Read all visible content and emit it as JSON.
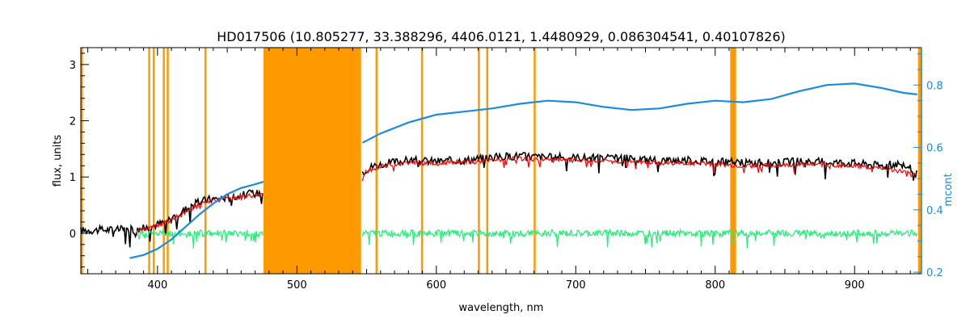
{
  "chart_data": {
    "type": "line",
    "title": "HD017506    (10.805277, 33.388296, 4406.0121, 1.4480929, 0.086304541, 0.40107826)",
    "xlabel": "wavelength, nm",
    "ylabel": "flux, units",
    "y2label": "mcont",
    "xlim": [
      345,
      948
    ],
    "ylim": [
      -0.72,
      3.3
    ],
    "y2lim": [
      0.195,
      0.92
    ],
    "x_ticks": [
      400,
      500,
      600,
      700,
      800,
      900
    ],
    "y_ticks": [
      0,
      1,
      2,
      3
    ],
    "y2_ticks": [
      0.2,
      0.4,
      0.6,
      0.8
    ],
    "grid": false,
    "colors": {
      "observed": "#000000",
      "model": "#ff0000",
      "residual": "#22ee77",
      "mask": "#ff9900",
      "continuum": "#1a8be0"
    },
    "masked_regions": [
      [
        345,
        346.5
      ],
      [
        393.3,
        394.3
      ],
      [
        396.6,
        397.6
      ],
      [
        403.8,
        404.8
      ],
      [
        406.6,
        407.6
      ],
      [
        433.7,
        434.7
      ],
      [
        476,
        546
      ],
      [
        556.4,
        557.4
      ],
      [
        589,
        590
      ],
      [
        629.8,
        630.8
      ],
      [
        635.8,
        636.8
      ],
      [
        669.8,
        670.8
      ],
      [
        810.8,
        815
      ],
      [
        945.5,
        948
      ]
    ],
    "series": [
      {
        "kind": "observed",
        "segments": [
          [
            [
              345,
              0.05
            ],
            [
              360,
              0.06
            ],
            [
              375,
              0.07
            ],
            [
              385,
              0.06
            ],
            [
              395,
              0.12
            ],
            [
              405,
              0.2
            ],
            [
              415,
              0.35
            ],
            [
              425,
              0.5
            ],
            [
              435,
              0.6
            ],
            [
              445,
              0.62
            ],
            [
              455,
              0.65
            ],
            [
              465,
              0.7
            ],
            [
              476,
              0.72
            ]
          ],
          [
            [
              547,
              1.1
            ],
            [
              555,
              1.2
            ],
            [
              565,
              1.25
            ],
            [
              580,
              1.3
            ],
            [
              600,
              1.28
            ],
            [
              620,
              1.3
            ],
            [
              640,
              1.35
            ],
            [
              660,
              1.38
            ],
            [
              680,
              1.35
            ],
            [
              700,
              1.35
            ],
            [
              720,
              1.33
            ],
            [
              740,
              1.33
            ],
            [
              760,
              1.3
            ],
            [
              780,
              1.3
            ],
            [
              800,
              1.28
            ],
            [
              820,
              1.25
            ],
            [
              840,
              1.25
            ],
            [
              860,
              1.28
            ],
            [
              880,
              1.27
            ],
            [
              900,
              1.25
            ],
            [
              920,
              1.2
            ],
            [
              935,
              1.25
            ],
            [
              945,
              1.05
            ]
          ]
        ]
      },
      {
        "kind": "model",
        "segments": [
          [
            [
              385,
              0.05
            ],
            [
              395,
              0.1
            ],
            [
              405,
              0.18
            ],
            [
              415,
              0.3
            ],
            [
              425,
              0.45
            ],
            [
              435,
              0.55
            ],
            [
              445,
              0.6
            ],
            [
              455,
              0.63
            ],
            [
              465,
              0.67
            ],
            [
              476,
              0.68
            ]
          ],
          [
            [
              547,
              1.05
            ],
            [
              555,
              1.15
            ],
            [
              565,
              1.22
            ],
            [
              580,
              1.25
            ],
            [
              600,
              1.25
            ],
            [
              620,
              1.27
            ],
            [
              640,
              1.3
            ],
            [
              660,
              1.33
            ],
            [
              680,
              1.3
            ],
            [
              700,
              1.3
            ],
            [
              720,
              1.28
            ],
            [
              740,
              1.28
            ],
            [
              760,
              1.25
            ],
            [
              780,
              1.25
            ],
            [
              800,
              1.23
            ],
            [
              820,
              1.2
            ],
            [
              840,
              1.2
            ],
            [
              860,
              1.23
            ],
            [
              880,
              1.22
            ],
            [
              900,
              1.2
            ],
            [
              920,
              1.15
            ],
            [
              935,
              1.1
            ],
            [
              945,
              1.0
            ]
          ]
        ]
      },
      {
        "kind": "residual",
        "segments": [
          [
            [
              385,
              0.0
            ],
            [
              420,
              0.0
            ],
            [
              476,
              0.0
            ]
          ],
          [
            [
              547,
              0.0
            ],
            [
              945,
              0.0
            ]
          ]
        ]
      },
      {
        "kind": "continuum",
        "axis": "right",
        "points": [
          [
            380,
            0.245
          ],
          [
            390,
            0.255
          ],
          [
            400,
            0.275
          ],
          [
            410,
            0.305
          ],
          [
            420,
            0.345
          ],
          [
            430,
            0.385
          ],
          [
            440,
            0.42
          ],
          [
            450,
            0.45
          ],
          [
            460,
            0.47
          ],
          [
            470,
            0.482
          ],
          [
            476,
            0.49
          ]
        ],
        "points2": [
          [
            547,
            0.615
          ],
          [
            560,
            0.645
          ],
          [
            580,
            0.68
          ],
          [
            600,
            0.705
          ],
          [
            620,
            0.715
          ],
          [
            640,
            0.725
          ],
          [
            660,
            0.74
          ],
          [
            680,
            0.75
          ],
          [
            700,
            0.745
          ],
          [
            720,
            0.73
          ],
          [
            740,
            0.72
          ],
          [
            760,
            0.725
          ],
          [
            780,
            0.74
          ],
          [
            800,
            0.75
          ],
          [
            820,
            0.745
          ],
          [
            840,
            0.755
          ],
          [
            860,
            0.78
          ],
          [
            880,
            0.8
          ],
          [
            900,
            0.805
          ],
          [
            920,
            0.79
          ],
          [
            935,
            0.775
          ],
          [
            945,
            0.77
          ]
        ]
      }
    ]
  }
}
